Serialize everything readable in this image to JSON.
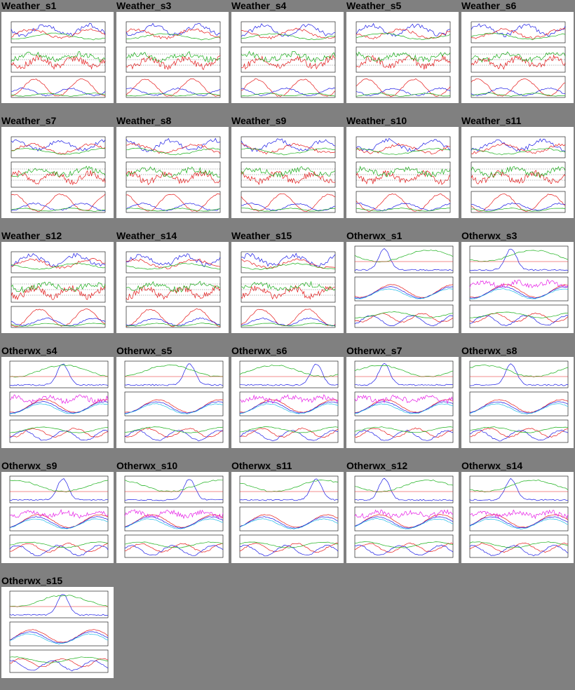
{
  "page": {
    "background": "#808080"
  },
  "colors": {
    "thumb_bg": "#ffffff",
    "blue": "#1a1ae6",
    "red": "#e61a1a",
    "green": "#1ab01a",
    "cyan": "#1ab8e6",
    "magenta": "#e61ae6",
    "dark": "#000000"
  },
  "gallery": {
    "items": [
      {
        "label": "Weather_s1",
        "kind": "weather",
        "variant": 0
      },
      {
        "label": "Weather_s3",
        "kind": "weather",
        "variant": 1
      },
      {
        "label": "Weather_s4",
        "kind": "weather",
        "variant": 2
      },
      {
        "label": "Weather_s5",
        "kind": "weather",
        "variant": 3
      },
      {
        "label": "Weather_s6",
        "kind": "weather",
        "variant": 4
      },
      {
        "label": "Weather_s7",
        "kind": "weather",
        "variant": 5
      },
      {
        "label": "Weather_s8",
        "kind": "weather",
        "variant": 6
      },
      {
        "label": "Weather_s9",
        "kind": "weather",
        "variant": 7
      },
      {
        "label": "Weather_s10",
        "kind": "weather",
        "variant": 8
      },
      {
        "label": "Weather_s11",
        "kind": "weather",
        "variant": 9
      },
      {
        "label": "Weather_s12",
        "kind": "weather",
        "variant": 10
      },
      {
        "label": "Weather_s14",
        "kind": "weather",
        "variant": 11
      },
      {
        "label": "Weather_s15",
        "kind": "weather",
        "variant": 12
      },
      {
        "label": "Otherwx_s1",
        "kind": "otherwx",
        "variant": 0
      },
      {
        "label": "Otherwx_s3",
        "kind": "otherwx",
        "variant": 1
      },
      {
        "label": "Otherwx_s4",
        "kind": "otherwx",
        "variant": 2
      },
      {
        "label": "Otherwx_s5",
        "kind": "otherwx",
        "variant": 3
      },
      {
        "label": "Otherwx_s6",
        "kind": "otherwx",
        "variant": 4
      },
      {
        "label": "Otherwx_s7",
        "kind": "otherwx",
        "variant": 5
      },
      {
        "label": "Otherwx_s8",
        "kind": "otherwx",
        "variant": 6
      },
      {
        "label": "Otherwx_s9",
        "kind": "otherwx",
        "variant": 7
      },
      {
        "label": "Otherwx_s10",
        "kind": "otherwx",
        "variant": 8
      },
      {
        "label": "Otherwx_s11",
        "kind": "otherwx",
        "variant": 9
      },
      {
        "label": "Otherwx_s12",
        "kind": "otherwx",
        "variant": 10
      },
      {
        "label": "Otherwx_s14",
        "kind": "otherwx",
        "variant": 11
      },
      {
        "label": "Otherwx_s15",
        "kind": "otherwx",
        "variant": 12
      }
    ]
  }
}
